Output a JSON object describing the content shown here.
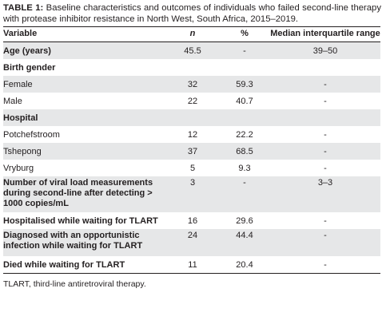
{
  "caption": {
    "label": "TABLE 1:",
    "text": " Baseline characteristics and outcomes of individuals who failed second-line therapy with protease inhibitor resistance in North West, South Africa, 2015–2019."
  },
  "headers": {
    "variable": "Variable",
    "n": "n",
    "percent": "%",
    "median": "Median interquartile range"
  },
  "rows": [
    {
      "label": "Age (years)",
      "n": "45.5",
      "pct": "-",
      "med": "39–50"
    },
    {
      "label": "Birth gender",
      "n": "",
      "pct": "",
      "med": ""
    },
    {
      "label": "Female",
      "n": "32",
      "pct": "59.3",
      "med": "-"
    },
    {
      "label": "Male",
      "n": "22",
      "pct": "40.7",
      "med": "-"
    },
    {
      "label": "Hospital",
      "n": "",
      "pct": "",
      "med": ""
    },
    {
      "label": "Potchefstroom",
      "n": "12",
      "pct": "22.2",
      "med": "-"
    },
    {
      "label": "Tshepong",
      "n": "37",
      "pct": "68.5",
      "med": "-"
    },
    {
      "label": "Vryburg",
      "n": "5",
      "pct": "9.3",
      "med": "-"
    },
    {
      "label": "Number of viral load measurements during second-line after detecting > 1000 copies/mL",
      "n": "3",
      "pct": "-",
      "med": "3–3"
    },
    {
      "label": "Hospitalised while waiting for TLART",
      "n": "16",
      "pct": "29.6",
      "med": "-"
    },
    {
      "label": "Diagnosed with an opportunistic infection while waiting for TLART",
      "n": "24",
      "pct": "44.4",
      "med": "-"
    },
    {
      "label": "Died while waiting for TLART",
      "n": "11",
      "pct": "20.4",
      "med": "-"
    }
  ],
  "footnote": "TLART, third-line antiretroviral therapy."
}
